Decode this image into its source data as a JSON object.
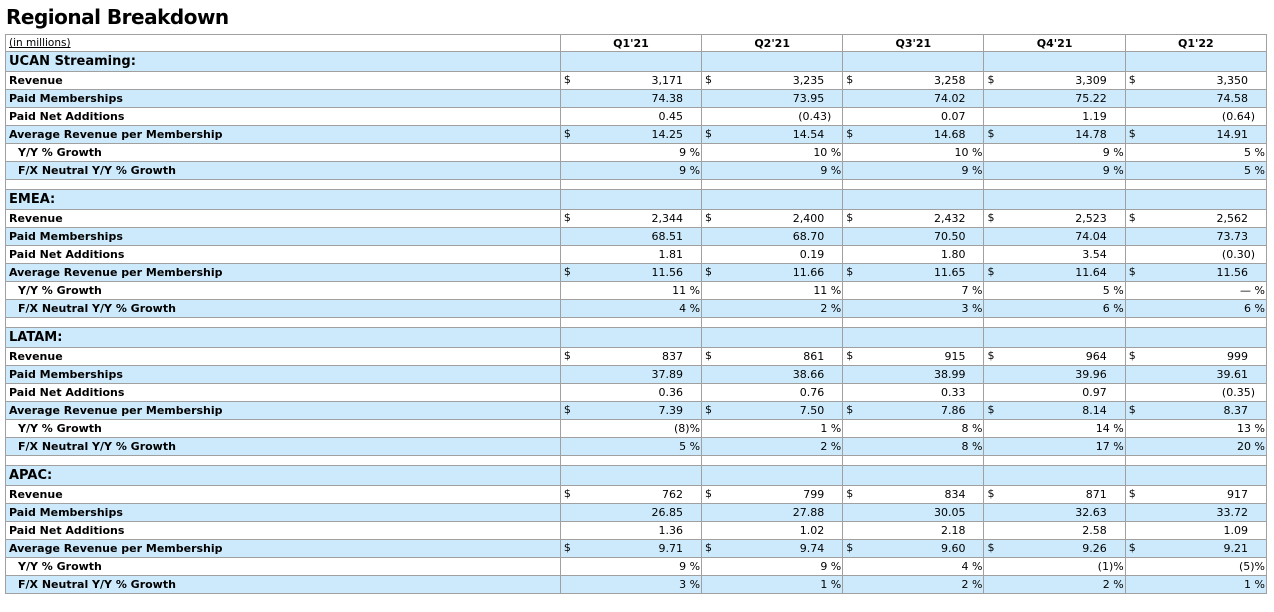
{
  "title": "Regional Breakdown",
  "units_label": "(in millions)",
  "columns": [
    "Q1'21",
    "Q2'21",
    "Q3'21",
    "Q4'21",
    "Q1'22"
  ],
  "sections": [
    {
      "name": "UCAN Streaming:",
      "rows": [
        {
          "label": "Revenue",
          "dollar": true,
          "values": [
            "3,171",
            "3,235",
            "3,258",
            "3,309",
            "3,350"
          ]
        },
        {
          "label": "Paid Memberships",
          "values": [
            "74.38",
            "73.95",
            "74.02",
            "75.22",
            "74.58"
          ]
        },
        {
          "label": "Paid Net Additions",
          "values": [
            "0.45",
            "(0.43)",
            "0.07",
            "1.19",
            "(0.64)"
          ]
        },
        {
          "label": "Average Revenue per Membership",
          "dollar": true,
          "values": [
            "14.25",
            "14.54",
            "14.68",
            "14.78",
            "14.91"
          ]
        },
        {
          "label": "Y/Y % Growth",
          "indent": true,
          "values": [
            "9 %",
            "10 %",
            "10 %",
            "9 %",
            "5 %"
          ]
        },
        {
          "label": "F/X Neutral Y/Y % Growth",
          "indent": true,
          "values": [
            "9 %",
            "9 %",
            "9 %",
            "9 %",
            "5 %"
          ]
        }
      ]
    },
    {
      "name": "EMEA:",
      "rows": [
        {
          "label": "Revenue",
          "dollar": true,
          "values": [
            "2,344",
            "2,400",
            "2,432",
            "2,523",
            "2,562"
          ]
        },
        {
          "label": "Paid Memberships",
          "values": [
            "68.51",
            "68.70",
            "70.50",
            "74.04",
            "73.73"
          ]
        },
        {
          "label": "Paid Net Additions",
          "values": [
            "1.81",
            "0.19",
            "1.80",
            "3.54",
            "(0.30)"
          ]
        },
        {
          "label": "Average Revenue per Membership",
          "dollar": true,
          "values": [
            "11.56",
            "11.66",
            "11.65",
            "11.64",
            "11.56"
          ]
        },
        {
          "label": "Y/Y % Growth",
          "indent": true,
          "values": [
            "11 %",
            "11 %",
            "7 %",
            "5 %",
            "— %"
          ]
        },
        {
          "label": "F/X Neutral Y/Y % Growth",
          "indent": true,
          "values": [
            "4 %",
            "2 %",
            "3 %",
            "6 %",
            "6 %"
          ]
        }
      ]
    },
    {
      "name": "LATAM:",
      "rows": [
        {
          "label": "Revenue",
          "dollar": true,
          "values": [
            "837",
            "861",
            "915",
            "964",
            "999"
          ]
        },
        {
          "label": "Paid Memberships",
          "values": [
            "37.89",
            "38.66",
            "38.99",
            "39.96",
            "39.61"
          ]
        },
        {
          "label": "Paid Net Additions",
          "values": [
            "0.36",
            "0.76",
            "0.33",
            "0.97",
            "(0.35)"
          ]
        },
        {
          "label": "Average Revenue per Membership",
          "dollar": true,
          "values": [
            "7.39",
            "7.50",
            "7.86",
            "8.14",
            "8.37"
          ]
        },
        {
          "label": "Y/Y % Growth",
          "indent": true,
          "values": [
            "(8)%",
            "1 %",
            "8 %",
            "14 %",
            "13 %"
          ]
        },
        {
          "label": "F/X Neutral Y/Y % Growth",
          "indent": true,
          "values": [
            "5 %",
            "2 %",
            "8 %",
            "17 %",
            "20 %"
          ]
        }
      ]
    },
    {
      "name": "APAC:",
      "rows": [
        {
          "label": "Revenue",
          "dollar": true,
          "values": [
            "762",
            "799",
            "834",
            "871",
            "917"
          ]
        },
        {
          "label": "Paid Memberships",
          "values": [
            "26.85",
            "27.88",
            "30.05",
            "32.63",
            "33.72"
          ]
        },
        {
          "label": "Paid Net Additions",
          "values": [
            "1.36",
            "1.02",
            "2.18",
            "2.58",
            "1.09"
          ]
        },
        {
          "label": "Average Revenue per Membership",
          "dollar": true,
          "values": [
            "9.71",
            "9.74",
            "9.60",
            "9.26",
            "9.21"
          ]
        },
        {
          "label": "Y/Y % Growth",
          "indent": true,
          "values": [
            "9 %",
            "9 %",
            "4 %",
            "(1)%",
            "(5)%"
          ]
        },
        {
          "label": "F/X Neutral Y/Y % Growth",
          "indent": true,
          "values": [
            "3 %",
            "1 %",
            "2 %",
            "2 %",
            "1 %"
          ]
        }
      ]
    }
  ],
  "currency_symbol": "$",
  "colors": {
    "row_highlight": "#cceafb",
    "grid": "#a0a0a0"
  }
}
